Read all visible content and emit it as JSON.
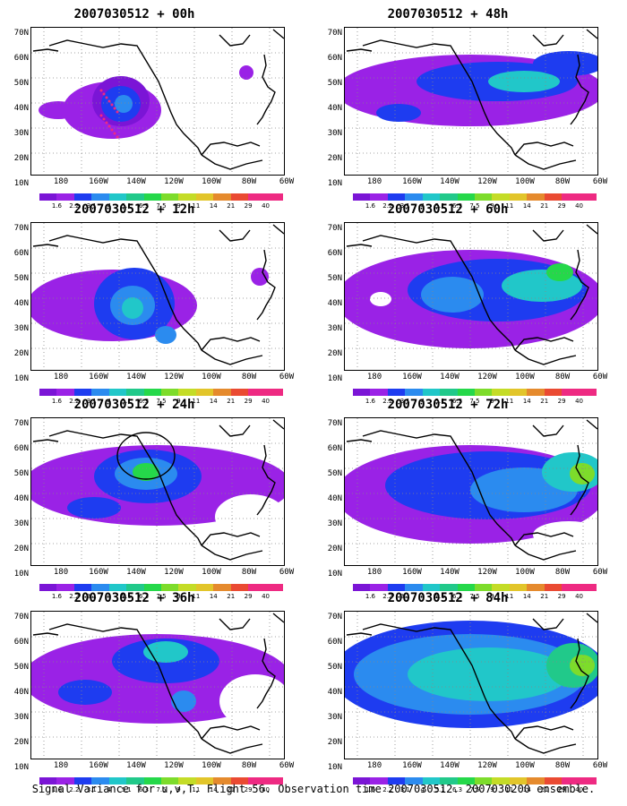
{
  "caption": "Signal Variance for u,v,T. Flight 56. Observation time 2007030512. 2007030200 ensemble.",
  "lat_labels": [
    "70N",
    "60N",
    "50N",
    "40N",
    "30N",
    "20N",
    "10N"
  ],
  "lon_labels": [
    "180",
    "160W",
    "140W",
    "120W",
    "100W",
    "80W",
    "60W"
  ],
  "colorbar": {
    "labels": [
      "1.6",
      "2.2",
      "3.1",
      "4",
      "5.1",
      "6.3",
      "7.5",
      "9",
      "11",
      "14",
      "21",
      "29",
      "40"
    ],
    "colors": [
      "#7b15d6",
      "#9a22e6",
      "#1e3cf0",
      "#2b8bef",
      "#21c7c9",
      "#21c98a",
      "#25d84a",
      "#7ddc2b",
      "#c4dc27",
      "#e2c52a",
      "#e58a2d",
      "#ea4a32",
      "#ee2a82"
    ]
  },
  "panels": [
    {
      "title": "2007030512 + 00h"
    },
    {
      "title": "2007030512 + 48h"
    },
    {
      "title": "2007030512 + 12h"
    },
    {
      "title": "2007030512 + 60h"
    },
    {
      "title": "2007030512 + 24h"
    },
    {
      "title": "2007030512 + 72h"
    },
    {
      "title": "2007030512 + 36h"
    },
    {
      "title": "2007030512 + 84h"
    }
  ]
}
